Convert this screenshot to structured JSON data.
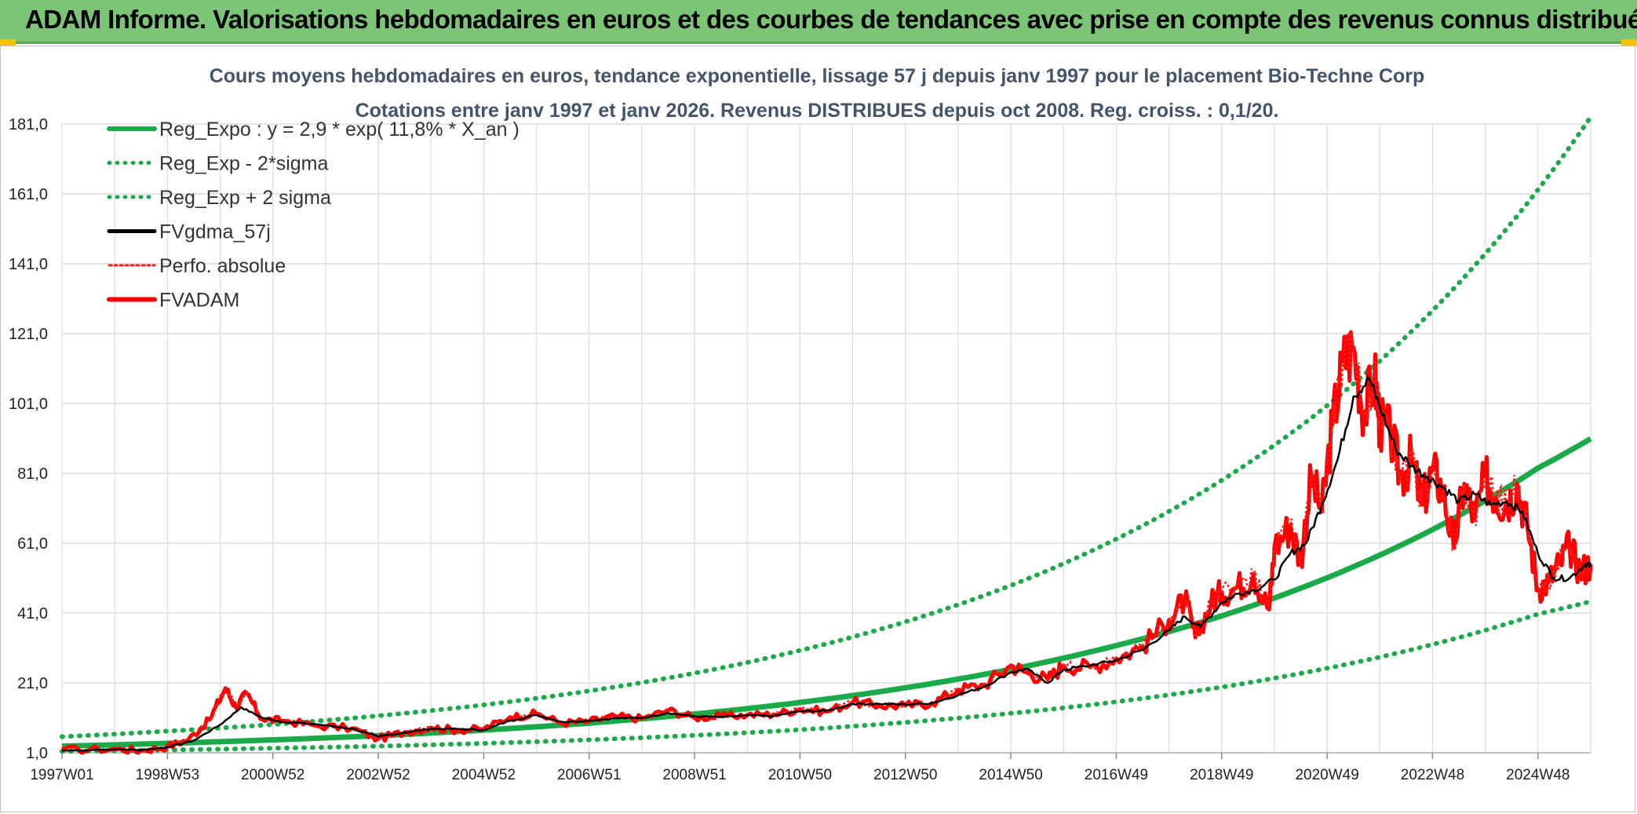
{
  "header": {
    "title": "ADAM Informe. Valorisations hebdomadaires en euros et des courbes de tendances avec prise en compte des revenus connus distribués"
  },
  "colors": {
    "header_bg": "#7cc576",
    "reg": "#1aaa4a",
    "band": "#1aaa4a",
    "mm": "#000000",
    "perf": "#ff1a1a",
    "fv": "#ff0000",
    "grid": "#dcdcdc"
  },
  "chart_data": {
    "type": "line",
    "title": "Cours moyens hebdomadaires en euros, tendance exponentielle, lissage 57 j depuis janv 1997 pour le placement Bio-Techne Corp",
    "subtitle": "Cotations entre janv 1997 et janv 2026. Revenus DISTRIBUES depuis oct 2008. Reg. croiss. : 0,1/20.",
    "xlabel": "",
    "ylabel": "",
    "x_start_year": 1997.0,
    "x_end_year": 2026.0,
    "ylim": [
      1.0,
      181.0
    ],
    "y_ticks": [
      "1,0",
      "21,0",
      "41,0",
      "61,0",
      "81,0",
      "101,0",
      "121,0",
      "141,0",
      "161,0",
      "181,0"
    ],
    "y_tick_values": [
      1,
      21,
      41,
      61,
      81,
      101,
      121,
      141,
      161,
      181
    ],
    "x_ticks": [
      "1997W01",
      "1998W53",
      "2000W52",
      "2002W52",
      "2004W52",
      "2006W51",
      "2008W51",
      "2010W50",
      "2012W50",
      "2014W50",
      "2016W49",
      "2018W49",
      "2020W49",
      "2022W48",
      "2024W48"
    ],
    "x_tick_years": [
      1997.0,
      1999.0,
      2001.0,
      2003.0,
      2005.0,
      2007.0,
      2009.0,
      2011.0,
      2013.0,
      2015.0,
      2017.0,
      2019.0,
      2021.0,
      2023.0,
      2025.0
    ],
    "legend": [
      "Reg_Expo : y = 2,9 * exp( 11,8% *  X_an )",
      "Reg_Exp - 2*sigma",
      "Reg_Exp + 2 sigma",
      "FVgdma_57j",
      "Perfo. absolue",
      "FVADAM"
    ],
    "legend_position": "top-left",
    "series": [
      {
        "name": "Reg_Expo : y = 2,9 * exp( 11,8% *  X_an )",
        "x": [
          1997,
          1999,
          2001,
          2003,
          2005,
          2007,
          2009,
          2011,
          2013,
          2015,
          2017,
          2019,
          2021,
          2023,
          2025,
          2026
        ],
        "values": [
          2.9,
          3.7,
          4.7,
          5.9,
          7.5,
          9.5,
          12.1,
          15.4,
          19.6,
          24.9,
          31.7,
          40.2,
          51.1,
          64.9,
          82.5,
          90.9
        ]
      },
      {
        "name": "Reg_Exp - 2*sigma",
        "x": [
          1997,
          1999,
          2001,
          2003,
          2005,
          2007,
          2009,
          2011,
          2013,
          2015,
          2017,
          2019,
          2021,
          2023,
          2025,
          2026
        ],
        "values": [
          1.4,
          1.8,
          2.3,
          2.9,
          3.7,
          4.7,
          6.0,
          7.6,
          9.7,
          12.3,
          15.6,
          19.8,
          25.2,
          32.0,
          40.7,
          44.3
        ]
      },
      {
        "name": "Reg_Exp + 2 sigma",
        "x": [
          1997,
          1999,
          2001,
          2003,
          2005,
          2007,
          2009,
          2011,
          2013,
          2015,
          2017,
          2019,
          2021,
          2023,
          2025,
          2026
        ],
        "values": [
          5.6,
          7.2,
          9.1,
          11.6,
          14.7,
          18.7,
          23.8,
          30.3,
          38.5,
          48.9,
          62.2,
          79.0,
          100.4,
          127.6,
          162.2,
          183.0
        ]
      },
      {
        "name": "FVgdma_57j",
        "x": [
          1997.0,
          1998.0,
          1998.5,
          1999.0,
          1999.5,
          2000.0,
          2000.4,
          2000.8,
          2001.2,
          2001.8,
          2002.5,
          2003.0,
          2003.5,
          2004.0,
          2004.5,
          2005.0,
          2005.5,
          2006.0,
          2006.5,
          2007.0,
          2007.5,
          2008.0,
          2008.5,
          2009.0,
          2009.5,
          2010.0,
          2010.5,
          2011.0,
          2011.5,
          2012.0,
          2012.5,
          2013.0,
          2013.5,
          2014.0,
          2014.5,
          2015.0,
          2015.3,
          2015.7,
          2016.0,
          2016.5,
          2017.0,
          2017.5,
          2018.0,
          2018.3,
          2018.6,
          2019.0,
          2019.3,
          2019.6,
          2020.0,
          2020.3,
          2020.6,
          2020.9,
          2021.2,
          2021.5,
          2021.8,
          2022.0,
          2022.3,
          2022.6,
          2022.9,
          2023.2,
          2023.5,
          2023.8,
          2024.1,
          2024.4,
          2024.7,
          2025.0,
          2025.3,
          2025.6,
          2025.9,
          2026.0
        ],
        "values": [
          1.6,
          2.0,
          1.8,
          2.6,
          4.5,
          9.0,
          14.0,
          11.0,
          9.8,
          9.2,
          7.9,
          5.6,
          6.8,
          7.9,
          7.8,
          7.5,
          10.2,
          11.8,
          9.8,
          10.2,
          10.9,
          11.0,
          12.4,
          11.4,
          11.2,
          11.7,
          11.5,
          12.9,
          13.0,
          15.0,
          15.0,
          14.8,
          15.2,
          17.5,
          20.0,
          24.0,
          25.0,
          21.0,
          24.8,
          26.0,
          27.5,
          30.5,
          36.0,
          40.0,
          37.0,
          44.0,
          46.5,
          47.5,
          50.5,
          58.0,
          61.0,
          72.0,
          85.0,
          103.0,
          108.0,
          100.0,
          88.0,
          83.0,
          80.0,
          77.0,
          73.0,
          75.0,
          72.0,
          73.0,
          70.0,
          58.0,
          51.0,
          51.0,
          55.0,
          54.5
        ]
      },
      {
        "name": "FVADAM",
        "x": [
          1997.0,
          1998.0,
          1998.5,
          1999.0,
          1999.4,
          1999.8,
          2000.1,
          2000.3,
          2000.5,
          2000.8,
          2001.2,
          2001.8,
          2002.5,
          2003.0,
          2003.5,
          2004.0,
          2004.5,
          2005.0,
          2005.5,
          2006.0,
          2006.5,
          2007.0,
          2007.5,
          2008.0,
          2008.5,
          2009.0,
          2009.5,
          2010.0,
          2010.5,
          2011.0,
          2011.5,
          2012.0,
          2012.5,
          2013.0,
          2013.5,
          2014.0,
          2014.5,
          2015.0,
          2015.3,
          2015.7,
          2016.0,
          2016.5,
          2017.0,
          2017.5,
          2018.0,
          2018.3,
          2018.5,
          2018.8,
          2019.0,
          2019.3,
          2019.6,
          2019.9,
          2020.0,
          2020.3,
          2020.5,
          2020.7,
          2020.9,
          2021.1,
          2021.3,
          2021.5,
          2021.7,
          2021.9,
          2022.0,
          2022.2,
          2022.4,
          2022.6,
          2022.8,
          2023.0,
          2023.2,
          2023.4,
          2023.6,
          2023.8,
          2024.0,
          2024.2,
          2024.4,
          2024.6,
          2024.8,
          2025.0,
          2025.2,
          2025.4,
          2025.6,
          2025.8,
          2026.0
        ],
        "values": [
          1.8,
          2.1,
          1.6,
          2.8,
          4.8,
          10.5,
          19.5,
          14.0,
          18.0,
          10.5,
          10.2,
          8.8,
          8.0,
          5.0,
          6.9,
          8.2,
          7.5,
          7.8,
          11.2,
          12.2,
          9.5,
          10.0,
          11.4,
          10.8,
          13.2,
          11.0,
          11.5,
          11.8,
          12.0,
          13.5,
          12.8,
          15.5,
          14.5,
          14.5,
          15.2,
          19.0,
          20.5,
          26.0,
          24.0,
          22.0,
          26.0,
          25.5,
          28.0,
          31.5,
          39.0,
          45.0,
          34.0,
          44.0,
          47.0,
          48.5,
          52.0,
          42.0,
          60.0,
          66.0,
          56.0,
          80.0,
          70.0,
          95.0,
          113.0,
          117.0,
          98.0,
          109.0,
          95.0,
          92.0,
          80.0,
          85.0,
          72.0,
          82.0,
          76.0,
          60.0,
          78.0,
          68.0,
          80.0,
          74.0,
          72.0,
          78.0,
          66.0,
          48.0,
          50.0,
          55.0,
          60.0,
          53.0,
          55.0
        ]
      }
    ]
  }
}
